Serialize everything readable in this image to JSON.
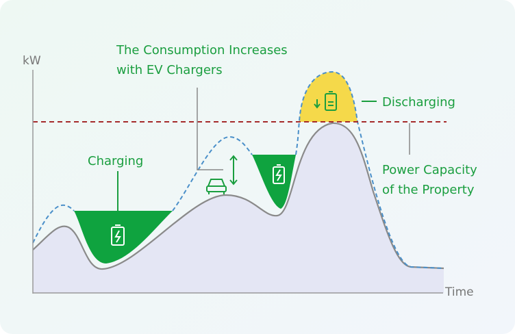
{
  "axis": {
    "y_label": "kW",
    "x_label": "Time"
  },
  "annotations": {
    "consumption": [
      "The Consumption Increases",
      "with EV Chargers"
    ],
    "charging": "Charging",
    "discharging": "Discharging",
    "capacity": [
      "Power Capacity",
      "of the Property"
    ]
  }
}
